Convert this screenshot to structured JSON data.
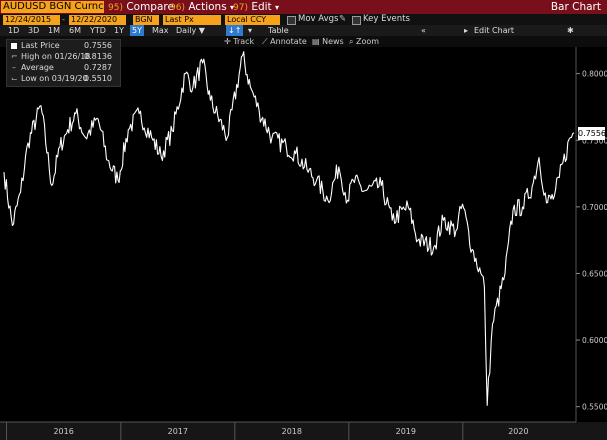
{
  "header": {
    "ticker": "AUDUSD BGN Curncy",
    "compare": {
      "num": "95)",
      "label": "Compare"
    },
    "actions": {
      "num": "96)",
      "label": "Actions",
      "caret": "▾"
    },
    "edit": {
      "num": "97)",
      "label": "Edit",
      "caret": "▾"
    },
    "title": "Bar Chart"
  },
  "settings": {
    "start_date": "12/24/2015",
    "end_date": "12/22/2020",
    "source": "BGN",
    "field": "Last Px",
    "currency": "Local CCY",
    "mov_avgs": "Mov Avgs",
    "key_events": "Key Events"
  },
  "ranges": [
    "1D",
    "3D",
    "1M",
    "6M",
    "YTD",
    "1Y",
    "5Y",
    "Max"
  ],
  "active_range": "5Y",
  "period": "Daily ▼",
  "period_icon": "↓↑",
  "table_label": "Table",
  "edit_chart": {
    "collapse": "«",
    "label": "Edit Chart",
    "gear": "✱"
  },
  "tools": {
    "track": "Track",
    "annotate": "Annotate",
    "news": "News",
    "zoom": "Zoom"
  },
  "legend": [
    {
      "label": "Last Price",
      "value": "0.7556",
      "marker": "square"
    },
    {
      "label": "High on 01/26/18",
      "value": "0.8136",
      "marker": "⌐"
    },
    {
      "label": "Average",
      "value": "0.7287",
      "marker": "–"
    },
    {
      "label": "Low on 03/19/20",
      "value": "0.5510",
      "marker": "⌙"
    }
  ],
  "last_price_label": "0.7556",
  "chart_data": {
    "type": "line",
    "series": [
      {
        "name": "Last Price",
        "color": "#ffffff"
      }
    ],
    "x_ticks": [
      "2016",
      "2017",
      "2018",
      "2019",
      "2020"
    ],
    "y_ticks": [
      "0.8000",
      "0.7500",
      "0.7000",
      "0.6500",
      "0.6000",
      "0.5500"
    ],
    "ylim": [
      0.54,
      0.82
    ],
    "x_range": [
      "2015-12-24",
      "2020-12-22"
    ],
    "points": [
      [
        "2015-12-24",
        0.726
      ],
      [
        "2016-01-20",
        0.686
      ],
      [
        "2016-02-15",
        0.711
      ],
      [
        "2016-03-10",
        0.748
      ],
      [
        "2016-04-20",
        0.776
      ],
      [
        "2016-05-25",
        0.716
      ],
      [
        "2016-06-20",
        0.745
      ],
      [
        "2016-07-15",
        0.758
      ],
      [
        "2016-08-10",
        0.77
      ],
      [
        "2016-09-10",
        0.752
      ],
      [
        "2016-10-20",
        0.766
      ],
      [
        "2016-11-20",
        0.735
      ],
      [
        "2016-12-23",
        0.72
      ],
      [
        "2017-01-25",
        0.758
      ],
      [
        "2017-03-01",
        0.77
      ],
      [
        "2017-04-10",
        0.752
      ],
      [
        "2017-05-10",
        0.738
      ],
      [
        "2017-06-15",
        0.757
      ],
      [
        "2017-07-27",
        0.8
      ],
      [
        "2017-08-20",
        0.79
      ],
      [
        "2017-09-20",
        0.808
      ],
      [
        "2017-10-15",
        0.78
      ],
      [
        "2017-12-08",
        0.752
      ],
      [
        "2018-01-26",
        0.8136
      ],
      [
        "2018-02-20",
        0.79
      ],
      [
        "2018-03-20",
        0.772
      ],
      [
        "2018-04-30",
        0.752
      ],
      [
        "2018-06-15",
        0.745
      ],
      [
        "2018-07-15",
        0.74
      ],
      [
        "2018-08-20",
        0.728
      ],
      [
        "2018-09-20",
        0.72
      ],
      [
        "2018-10-26",
        0.705
      ],
      [
        "2018-11-30",
        0.73
      ],
      [
        "2018-12-28",
        0.705
      ],
      [
        "2019-01-15",
        0.72
      ],
      [
        "2019-02-20",
        0.712
      ],
      [
        "2019-04-15",
        0.716
      ],
      [
        "2019-05-20",
        0.69
      ],
      [
        "2019-07-10",
        0.7
      ],
      [
        "2019-08-10",
        0.675
      ],
      [
        "2019-09-30",
        0.67
      ],
      [
        "2019-10-31",
        0.69
      ],
      [
        "2019-12-10",
        0.682
      ],
      [
        "2019-12-31",
        0.702
      ],
      [
        "2020-01-31",
        0.668
      ],
      [
        "2020-02-28",
        0.65
      ],
      [
        "2020-03-10",
        0.64
      ],
      [
        "2020-03-19",
        0.551
      ],
      [
        "2020-04-05",
        0.612
      ],
      [
        "2020-05-15",
        0.65
      ],
      [
        "2020-06-10",
        0.698
      ],
      [
        "2020-07-10",
        0.7
      ],
      [
        "2020-08-10",
        0.715
      ],
      [
        "2020-09-01",
        0.737
      ],
      [
        "2020-09-25",
        0.703
      ],
      [
        "2020-10-20",
        0.708
      ],
      [
        "2020-11-05",
        0.722
      ],
      [
        "2020-12-10",
        0.752
      ],
      [
        "2020-12-22",
        0.7556
      ]
    ]
  }
}
